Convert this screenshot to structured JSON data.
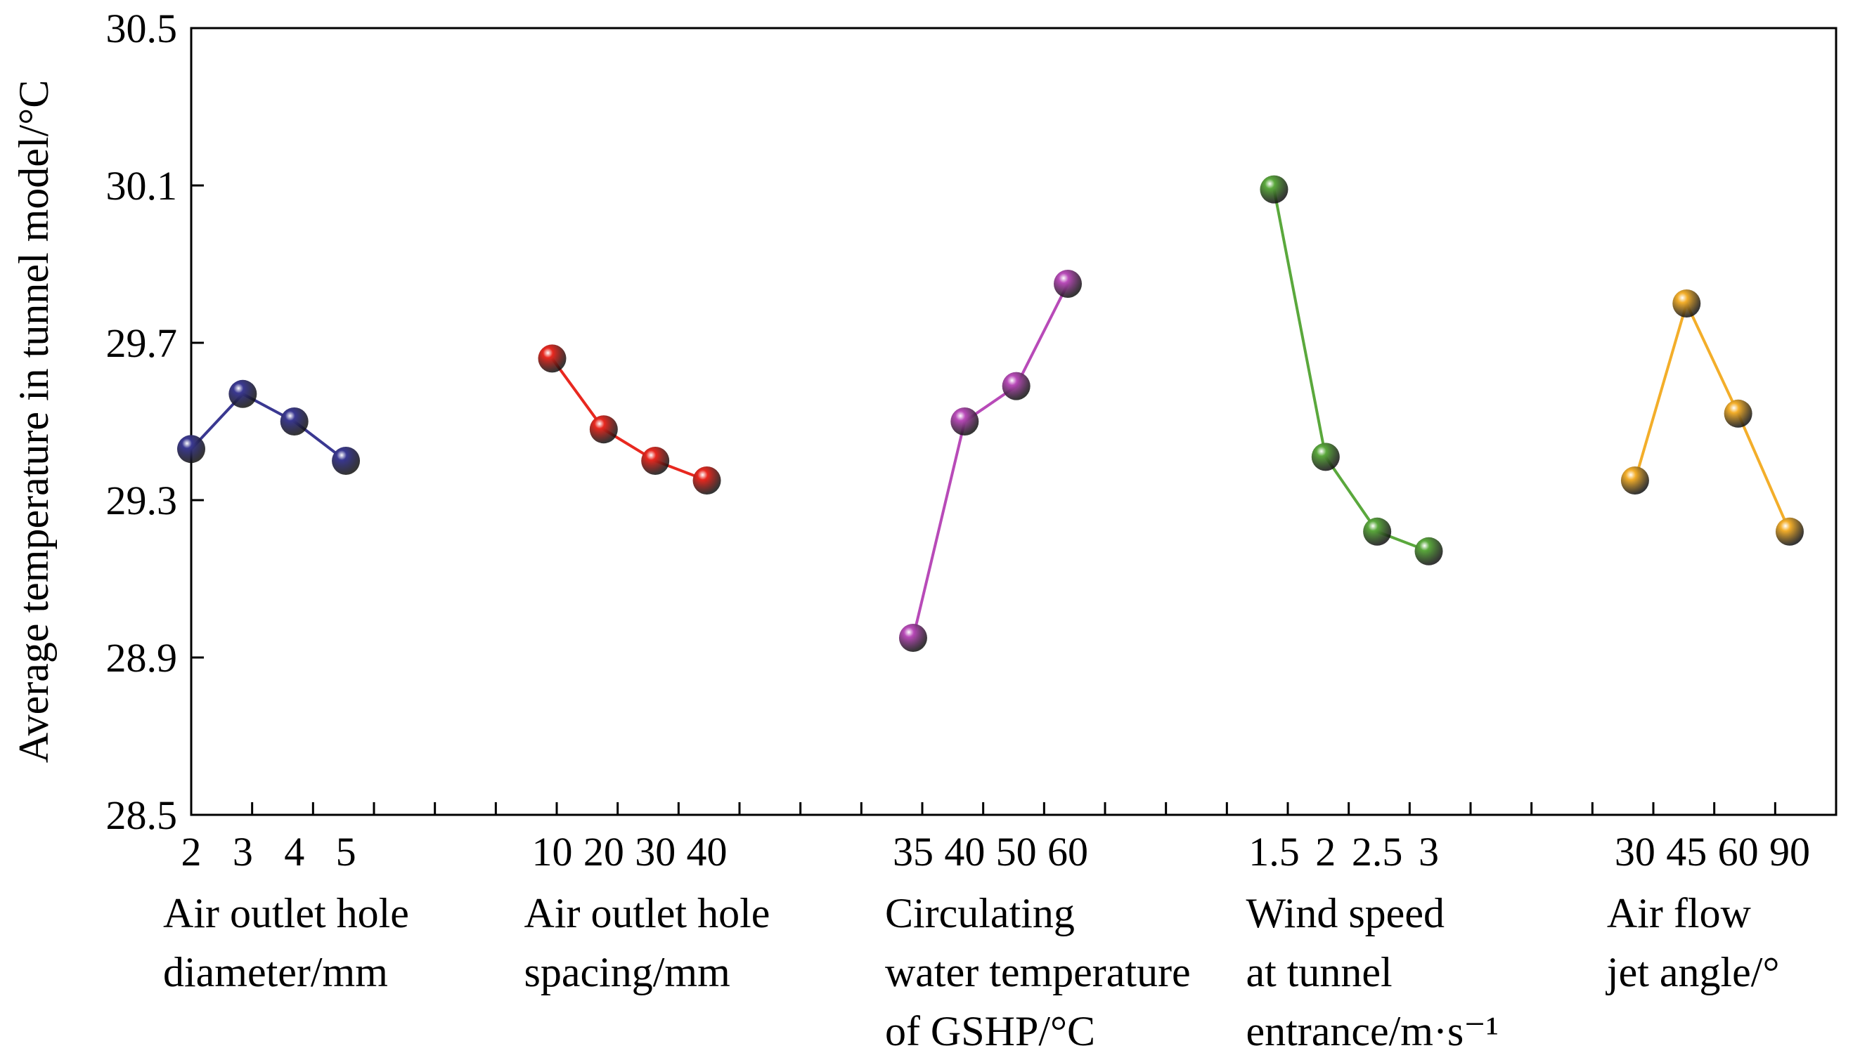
{
  "chart_data": {
    "type": "line",
    "ylabel": "Average temperature in tunnel model/°C",
    "ylim": [
      28.5,
      30.5
    ],
    "yticks": [
      "28.5",
      "28.9",
      "29.3",
      "29.7",
      "30.1",
      "30.5"
    ],
    "grid": false,
    "groups": [
      {
        "label_lines": [
          "Air outlet hole",
          "diameter/mm"
        ],
        "levels": [
          "2",
          "3",
          "4",
          "5"
        ],
        "values": [
          29.43,
          29.57,
          29.5,
          29.4
        ],
        "color": "#3a3891"
      },
      {
        "label_lines": [
          "Air outlet hole",
          "spacing/mm"
        ],
        "levels": [
          "10",
          "20",
          "30",
          "40"
        ],
        "values": [
          29.66,
          29.48,
          29.4,
          29.35
        ],
        "color": "#e8281f"
      },
      {
        "label_lines": [
          "Circulating",
          "water temperature",
          "of GSHP/°C"
        ],
        "levels": [
          "35",
          "40",
          "50",
          "60"
        ],
        "values": [
          28.95,
          29.5,
          29.59,
          29.85
        ],
        "color": "#b84ab8"
      },
      {
        "label_lines": [
          "Wind speed",
          "at tunnel",
          "entrance/m·s⁻¹"
        ],
        "levels": [
          "1.5",
          "2",
          "2.5",
          "3"
        ],
        "values": [
          30.09,
          29.41,
          29.22,
          29.17
        ],
        "color": "#5aa83c"
      },
      {
        "label_lines": [
          "Air flow",
          "jet angle/°"
        ],
        "levels": [
          "30",
          "45",
          "60",
          "90"
        ],
        "values": [
          29.35,
          29.8,
          29.52,
          29.22
        ],
        "color": "#f3ae2a"
      }
    ]
  }
}
